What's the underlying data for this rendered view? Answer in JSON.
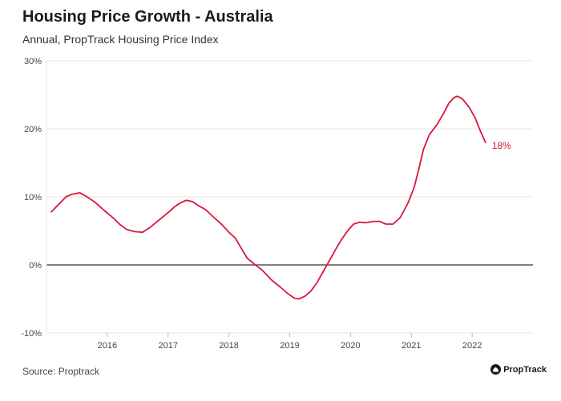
{
  "header": {
    "title": "Housing Price Growth - Australia",
    "subtitle": "Annual, PropTrack Housing Price Index"
  },
  "footer": {
    "source": "Source: Proptrack",
    "brand": "PropTrack"
  },
  "colors": {
    "line": "#d6173c",
    "zero_line": "#333333",
    "grid": "#e6e6e6"
  },
  "chart_data": {
    "type": "line",
    "title": "Housing Price Growth - Australia",
    "subtitle": "Annual, PropTrack Housing Price Index",
    "xlabel": "",
    "ylabel": "",
    "ylim": [
      -10,
      30
    ],
    "xlim": [
      2015.0,
      2023.0
    ],
    "y_ticks": [
      30,
      20,
      10,
      0,
      -10
    ],
    "y_tick_labels": [
      "30%",
      "20%",
      "10%",
      "0%",
      "-10%"
    ],
    "x_ticks": [
      2016,
      2017,
      2018,
      2019,
      2020,
      2021,
      2022
    ],
    "x_tick_labels": [
      "2016",
      "2017",
      "2018",
      "2019",
      "2020",
      "2021",
      "2022"
    ],
    "grid": "horizontal",
    "end_label": "18%",
    "series": [
      {
        "values": [
          [
            2015.08,
            7.8
          ],
          [
            2015.2,
            8.9
          ],
          [
            2015.32,
            10.0
          ],
          [
            2015.42,
            10.4
          ],
          [
            2015.55,
            10.6
          ],
          [
            2015.65,
            10.1
          ],
          [
            2015.8,
            9.2
          ],
          [
            2015.95,
            8.0
          ],
          [
            2016.1,
            6.9
          ],
          [
            2016.2,
            6.0
          ],
          [
            2016.32,
            5.2
          ],
          [
            2016.45,
            4.9
          ],
          [
            2016.58,
            4.8
          ],
          [
            2016.7,
            5.5
          ],
          [
            2016.85,
            6.6
          ],
          [
            2017.0,
            7.7
          ],
          [
            2017.1,
            8.5
          ],
          [
            2017.2,
            9.1
          ],
          [
            2017.3,
            9.5
          ],
          [
            2017.4,
            9.3
          ],
          [
            2017.5,
            8.7
          ],
          [
            2017.62,
            8.1
          ],
          [
            2017.75,
            7.0
          ],
          [
            2017.9,
            5.8
          ],
          [
            2018.0,
            4.8
          ],
          [
            2018.1,
            4.0
          ],
          [
            2018.18,
            2.8
          ],
          [
            2018.3,
            1.0
          ],
          [
            2018.42,
            0.1
          ],
          [
            2018.55,
            -0.8
          ],
          [
            2018.7,
            -2.2
          ],
          [
            2018.85,
            -3.3
          ],
          [
            2018.98,
            -4.3
          ],
          [
            2019.08,
            -4.9
          ],
          [
            2019.15,
            -5.0
          ],
          [
            2019.25,
            -4.6
          ],
          [
            2019.35,
            -3.8
          ],
          [
            2019.45,
            -2.6
          ],
          [
            2019.55,
            -1.0
          ],
          [
            2019.65,
            0.6
          ],
          [
            2019.75,
            2.2
          ],
          [
            2019.85,
            3.7
          ],
          [
            2019.95,
            5.0
          ],
          [
            2020.05,
            6.0
          ],
          [
            2020.15,
            6.3
          ],
          [
            2020.25,
            6.2
          ],
          [
            2020.38,
            6.4
          ],
          [
            2020.48,
            6.4
          ],
          [
            2020.58,
            6.0
          ],
          [
            2020.7,
            6.0
          ],
          [
            2020.82,
            7.0
          ],
          [
            2020.95,
            9.2
          ],
          [
            2021.05,
            11.5
          ],
          [
            2021.12,
            14.0
          ],
          [
            2021.2,
            17.0
          ],
          [
            2021.3,
            19.2
          ],
          [
            2021.42,
            20.6
          ],
          [
            2021.52,
            22.1
          ],
          [
            2021.62,
            23.8
          ],
          [
            2021.7,
            24.6
          ],
          [
            2021.76,
            24.8
          ],
          [
            2021.84,
            24.4
          ],
          [
            2021.95,
            23.2
          ],
          [
            2022.05,
            21.6
          ],
          [
            2022.14,
            19.6
          ],
          [
            2022.22,
            18.0
          ]
        ]
      }
    ]
  }
}
